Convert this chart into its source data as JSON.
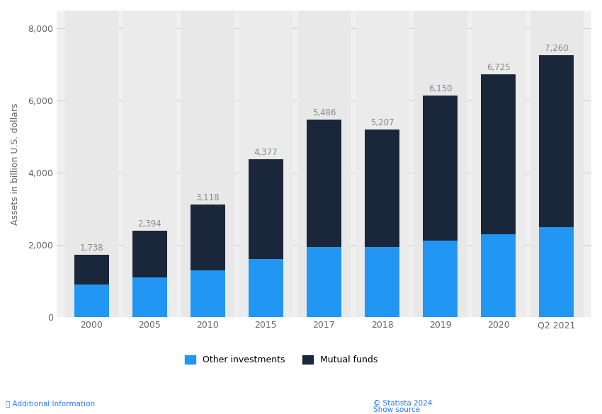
{
  "categories": [
    "2000",
    "2005",
    "2010",
    "2015",
    "2017",
    "2018",
    "2019",
    "2020",
    "Q2 2021"
  ],
  "totals": [
    1738,
    2394,
    3118,
    4377,
    5486,
    5207,
    6150,
    6725,
    7260
  ],
  "other_investments": [
    900,
    1100,
    1300,
    1620,
    1950,
    1950,
    2130,
    2300,
    2500
  ],
  "color_other": "#2196f3",
  "color_mutual": "#1a2639",
  "ylabel": "Assets in billion U.S. dollars",
  "ylim": [
    0,
    8500
  ],
  "yticks": [
    0,
    2000,
    4000,
    6000,
    8000
  ],
  "legend_other": "Other investments",
  "legend_mutual": "Mutual funds",
  "label_color": "#888888",
  "bg_color": "#f0f0f0",
  "plot_bg": "#ffffff",
  "grid_color": "#cccccc",
  "bar_width": 0.6,
  "label_fontsize": 8.5,
  "axis_fontsize": 9,
  "legend_fontsize": 9
}
